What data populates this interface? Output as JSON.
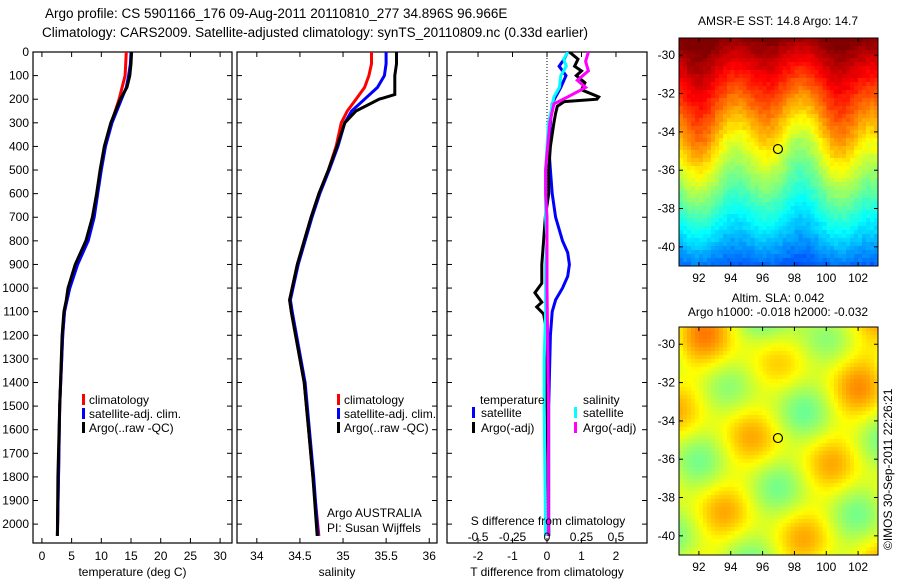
{
  "header": {
    "line1": "Argo profile: CS 5901166_176 09-Aug-2011 20110810_277 34.896S 96.966E",
    "line2": "Climatology: CARS2009. Satellite-adjusted climatology: synTS_20110809.nc (0.33d earlier)"
  },
  "footer_stamp": "©IMOS 30-Sep-2011 22:26:21",
  "credits": {
    "line1": "Argo AUSTRALIA",
    "line2": "PI: Susan Wijffels"
  },
  "chart_data": [
    {
      "type": "line",
      "id": "temperature",
      "xlabel": "temperature (deg C)",
      "xlim": [
        -1.5,
        32
      ],
      "ylim": [
        2080,
        0
      ],
      "xticks": [
        0,
        5,
        10,
        15,
        20,
        25,
        30
      ],
      "xticklabels": [
        "0",
        "5",
        "10",
        "15",
        "20",
        "25",
        "30"
      ],
      "yticks": [
        0,
        100,
        200,
        300,
        400,
        500,
        600,
        700,
        800,
        900,
        1000,
        1100,
        1200,
        1300,
        1400,
        1500,
        1600,
        1700,
        1800,
        1900,
        2000
      ],
      "yticklabels": [
        "0",
        "100",
        "200",
        "300",
        "400",
        "500",
        "600",
        "700",
        "800",
        "900",
        "1000",
        "1100",
        "1200",
        "1300",
        "1400",
        "1500",
        "1600",
        "1700",
        "1800",
        "1900",
        "2000"
      ],
      "legend": [
        {
          "label": "climatology",
          "color": "#ff0000"
        },
        {
          "label": "satellite-adj. clim.",
          "color": "#0000ff"
        },
        {
          "label": "Argo(..raw -QC)",
          "color": "#000000"
        }
      ],
      "series": [
        {
          "name": "climatology",
          "color": "#ff0000",
          "depth": [
            0,
            50,
            100,
            150,
            200,
            300,
            400,
            500,
            600,
            700,
            800,
            900,
            1000,
            1100,
            1200,
            1500,
            1800,
            2050
          ],
          "values": [
            14.2,
            14.1,
            14.0,
            13.5,
            13.0,
            11.7,
            10.6,
            9.9,
            9.3,
            8.6,
            7.6,
            5.8,
            4.6,
            3.8,
            3.5,
            3.0,
            2.8,
            2.6
          ]
        },
        {
          "name": "satellite-adj. clim.",
          "color": "#0000ff",
          "depth": [
            0,
            50,
            100,
            150,
            200,
            300,
            400,
            500,
            600,
            700,
            800,
            900,
            1000,
            1100,
            1200,
            1500,
            1800,
            2050
          ],
          "values": [
            15.0,
            14.9,
            14.6,
            14.2,
            13.4,
            11.8,
            10.7,
            10.0,
            9.4,
            8.8,
            7.8,
            6.0,
            4.7,
            3.8,
            3.5,
            3.0,
            2.8,
            2.6
          ]
        },
        {
          "name": "Argo(..raw -QC)",
          "color": "#000000",
          "depth": [
            0,
            50,
            100,
            150,
            200,
            300,
            400,
            500,
            600,
            700,
            800,
            900,
            1000,
            1050,
            1100,
            1200,
            1500,
            1800,
            2050
          ],
          "values": [
            15.1,
            15.0,
            14.8,
            14.3,
            13.2,
            11.6,
            10.5,
            9.8,
            9.2,
            8.5,
            7.4,
            5.6,
            4.4,
            4.1,
            3.7,
            3.4,
            3.0,
            2.7,
            2.6
          ]
        }
      ]
    },
    {
      "type": "line",
      "id": "salinity",
      "xlabel": "salinity",
      "xlim": [
        33.77,
        36.09
      ],
      "ylim": [
        2080,
        0
      ],
      "xticks": [
        34,
        34.5,
        35,
        35.5,
        36
      ],
      "xticklabels": [
        "34",
        "34.5",
        "35",
        "35.5",
        "36"
      ],
      "legend": [
        {
          "label": "climatology",
          "color": "#ff0000"
        },
        {
          "label": "satellite-adj. clim.",
          "color": "#0000ff"
        },
        {
          "label": "Argo(..raw -QC)",
          "color": "#000000"
        }
      ],
      "series": [
        {
          "name": "climatology",
          "color": "#ff0000",
          "depth": [
            0,
            50,
            100,
            150,
            200,
            250,
            300,
            400,
            500,
            600,
            700,
            800,
            900,
            1000,
            1050,
            1100,
            1200,
            1400,
            1600,
            1800,
            2050
          ],
          "values": [
            35.33,
            35.33,
            35.3,
            35.25,
            35.15,
            35.05,
            34.98,
            34.92,
            34.83,
            34.72,
            34.63,
            34.55,
            34.47,
            34.41,
            34.38,
            34.4,
            34.45,
            34.55,
            34.6,
            34.65,
            34.72
          ]
        },
        {
          "name": "satellite-adj. clim.",
          "color": "#0000ff",
          "depth": [
            0,
            50,
            100,
            150,
            200,
            250,
            300,
            400,
            500,
            600,
            700,
            800,
            900,
            1000,
            1050,
            1100,
            1200,
            1400,
            1600,
            1800,
            2050
          ],
          "values": [
            35.5,
            35.5,
            35.48,
            35.4,
            35.25,
            35.1,
            35.02,
            34.94,
            34.84,
            34.73,
            34.64,
            34.56,
            34.48,
            34.42,
            34.39,
            34.41,
            34.46,
            34.56,
            34.61,
            34.66,
            34.71
          ]
        },
        {
          "name": "Argo(..raw -QC)",
          "color": "#000000",
          "depth": [
            0,
            50,
            100,
            150,
            180,
            200,
            250,
            300,
            400,
            500,
            600,
            700,
            800,
            900,
            1000,
            1050,
            1100,
            1200,
            1400,
            1600,
            1800,
            2050
          ],
          "values": [
            35.62,
            35.62,
            35.6,
            35.6,
            35.6,
            35.42,
            35.15,
            35.02,
            34.93,
            34.83,
            34.72,
            34.63,
            34.55,
            34.47,
            34.41,
            34.38,
            34.4,
            34.45,
            34.55,
            34.6,
            34.65,
            34.7
          ]
        }
      ]
    },
    {
      "type": "line",
      "id": "difference",
      "xlabel": "T difference from climatology",
      "xlabel2": "S difference from climatology",
      "xlim": [
        -2.9,
        2.9
      ],
      "ylim": [
        2080,
        0
      ],
      "xticks": [
        -2,
        -1,
        0,
        1,
        2
      ],
      "xticklabels": [
        "-2",
        "-1",
        "0",
        "1",
        "2"
      ],
      "sticks": [
        -0.5,
        -0.25,
        0,
        0.25,
        0.5
      ],
      "sticklabels": [
        "-0.5",
        "-0.25",
        "0",
        "0.25",
        "0.5"
      ],
      "legend_temperature_title": "temperature",
      "legend_salinity_title": "salinity",
      "legend": [
        {
          "group": "temperature",
          "label": "satellite",
          "color": "#0000ff"
        },
        {
          "group": "temperature",
          "label": "Argo(-adj)",
          "color": "#000000"
        },
        {
          "group": "salinity",
          "label": "satellite",
          "color": "#00ffff"
        },
        {
          "group": "salinity",
          "label": "Argo(-adj)",
          "color": "#ff00ff"
        }
      ],
      "series": [
        {
          "name": "T satellite",
          "quantity": "T",
          "color": "#0000ff",
          "depth": [
            0,
            30,
            60,
            100,
            150,
            190,
            220,
            300,
            400,
            500,
            600,
            700,
            800,
            850,
            900,
            950,
            1000,
            1050,
            1100,
            1200,
            1500,
            2050
          ],
          "values": [
            0.6,
            0.5,
            0.35,
            0.55,
            0.4,
            0.25,
            0.15,
            0.1,
            0.05,
            0.1,
            0.15,
            0.25,
            0.45,
            0.6,
            0.65,
            0.6,
            0.45,
            0.25,
            0.15,
            0.1,
            0.05,
            0.05
          ]
        },
        {
          "name": "T Argo(-adj)",
          "quantity": "T",
          "color": "#000000",
          "depth": [
            0,
            30,
            60,
            80,
            100,
            130,
            160,
            190,
            200,
            210,
            230,
            260,
            300,
            400,
            500,
            600,
            700,
            800,
            900,
            980,
            1020,
            1060,
            1080,
            1110,
            1150,
            1200,
            1500,
            2050
          ],
          "values": [
            0.65,
            0.9,
            0.8,
            1.0,
            0.85,
            1.1,
            1.0,
            1.5,
            1.45,
            0.5,
            0.3,
            0.25,
            0.2,
            0.1,
            0.05,
            0.05,
            -0.05,
            -0.1,
            -0.15,
            -0.15,
            -0.35,
            -0.15,
            -0.3,
            -0.1,
            -0.05,
            0.0,
            0.0,
            0.05
          ]
        },
        {
          "name": "S satellite",
          "quantity": "S",
          "color": "#00ffff",
          "depth": [
            0,
            30,
            60,
            100,
            150,
            190,
            250,
            300,
            500,
            700,
            800,
            900,
            1100,
            1300,
            1500,
            2050
          ],
          "values": [
            0.15,
            0.12,
            0.14,
            0.1,
            0.09,
            0.05,
            0.03,
            0.01,
            -0.01,
            -0.01,
            0.0,
            -0.01,
            -0.01,
            -0.02,
            -0.02,
            -0.01
          ]
        },
        {
          "name": "S Argo(-adj)",
          "quantity": "S",
          "color": "#ff00ff",
          "depth": [
            0,
            40,
            80,
            120,
            150,
            190,
            220,
            300,
            500,
            600,
            700,
            1000,
            1500,
            2050
          ],
          "values": [
            0.3,
            0.28,
            0.3,
            0.22,
            0.28,
            0.15,
            0.05,
            0.02,
            -0.01,
            -0.01,
            0.0,
            0.0,
            0.01,
            0.01
          ]
        }
      ]
    },
    {
      "type": "heatmap",
      "id": "sst-map",
      "title": "AMSR-E SST: 14.8 Argo: 14.7",
      "xlim": [
        90.75,
        103.25
      ],
      "ylim": [
        -41,
        -29.1
      ],
      "xticks": [
        92,
        94,
        96,
        98,
        100,
        102
      ],
      "xticklabels": [
        "92",
        "94",
        "96",
        "98",
        "100",
        "102"
      ],
      "yticks": [
        -30,
        -32,
        -34,
        -36,
        -38,
        -40
      ],
      "yticklabels": [
        "-30",
        "-32",
        "-34",
        "-36",
        "-38",
        "-40"
      ],
      "marker": {
        "lon": 96.966,
        "lat": -34.896
      }
    },
    {
      "type": "heatmap",
      "id": "sla-map",
      "title": "Altim. SLA: 0.042",
      "subtitle": "Argo h1000: -0.018 h2000: -0.032",
      "xlim": [
        90.75,
        103.25
      ],
      "ylim": [
        -41,
        -29.1
      ],
      "xticks": [
        92,
        94,
        96,
        98,
        100,
        102
      ],
      "xticklabels": [
        "92",
        "94",
        "96",
        "98",
        "100",
        "102"
      ],
      "yticks": [
        -30,
        -32,
        -34,
        -36,
        -38,
        -40
      ],
      "yticklabels": [
        "-30",
        "-32",
        "-34",
        "-36",
        "-38",
        "-40"
      ],
      "marker": {
        "lon": 96.966,
        "lat": -34.896
      }
    }
  ]
}
